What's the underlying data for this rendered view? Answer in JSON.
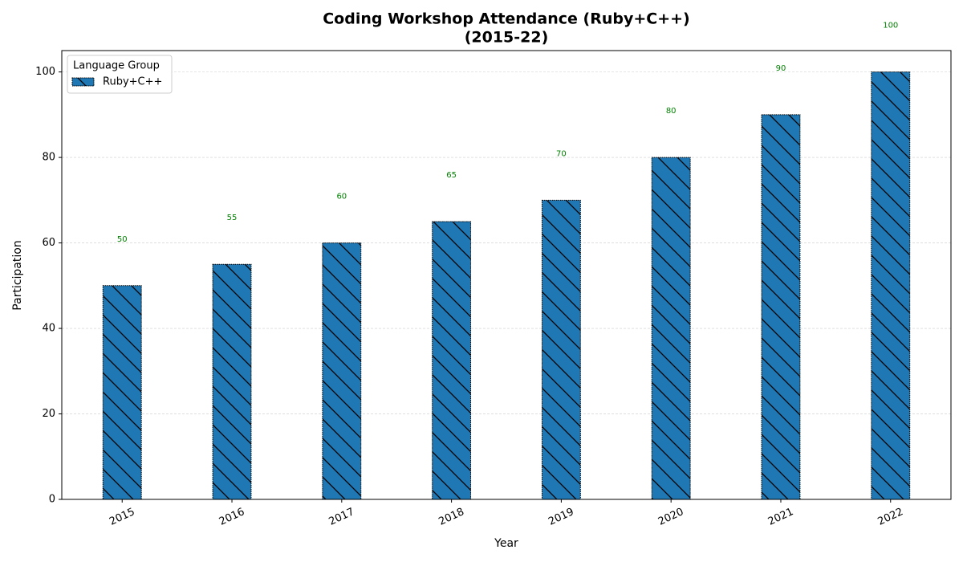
{
  "chart_data": {
    "type": "bar",
    "title": [
      "Coding Workshop Attendance (Ruby+C++)",
      "(2015-22)"
    ],
    "xlabel": "Year",
    "ylabel": "Participation",
    "categories": [
      "2015",
      "2016",
      "2017",
      "2018",
      "2019",
      "2020",
      "2021",
      "2022"
    ],
    "series": [
      {
        "name": "Ruby+C++",
        "color": "#1f77b4",
        "values": [
          50,
          55,
          60,
          65,
          70,
          80,
          90,
          100
        ]
      }
    ],
    "value_label_color": "#008000",
    "ylim": [
      0,
      105
    ],
    "yticks": [
      0,
      20,
      40,
      60,
      80,
      100
    ],
    "grid": true,
    "legend": "upper left",
    "legend_title": "Language Group",
    "hatch": true
  }
}
